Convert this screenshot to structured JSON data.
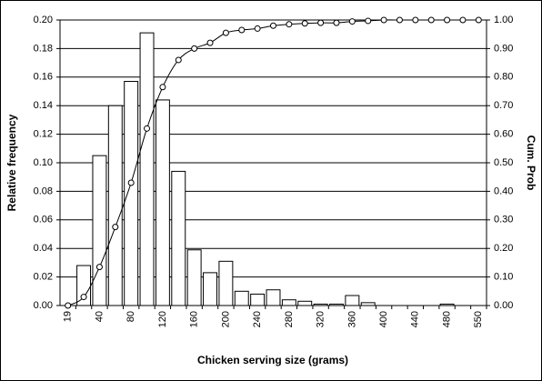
{
  "chart_data": {
    "type": "bar",
    "x_label": "Chicken serving size (grams)",
    "y_label": "Relative frequency",
    "y2_label": "Cum. Prob",
    "categories": [
      "19",
      null,
      "40",
      null,
      "80",
      null,
      "120",
      null,
      "160",
      null,
      "200",
      null,
      "240",
      null,
      "280",
      null,
      "320",
      null,
      "360",
      null,
      "400",
      null,
      "440",
      null,
      "480",
      null,
      "550"
    ],
    "series": [
      {
        "color": "#ffffff",
        "values": [
          0,
          0.028,
          0.105,
          0.14,
          0.157,
          0.191,
          0.144,
          0.094,
          0.039,
          0.023,
          0.031,
          0.01,
          0.008,
          0.011,
          0.004,
          0.003,
          0.001,
          0.001,
          0.007,
          0.002,
          0,
          0,
          0,
          0,
          0.001,
          0,
          0
        ]
      },
      {
        "type": "line",
        "axis": "y2",
        "color": "#000000",
        "values": [
          0,
          0.03,
          0.135,
          0.275,
          0.43,
          0.62,
          0.765,
          0.86,
          0.9,
          0.92,
          0.955,
          0.965,
          0.97,
          0.98,
          0.985,
          0.988,
          0.99,
          0.99,
          0.995,
          0.997,
          1,
          1,
          1,
          1,
          1,
          1,
          1
        ]
      }
    ],
    "ylim": [
      0,
      0.2
    ],
    "yticks": [
      {
        "value": 0,
        "label": "0.00"
      },
      {
        "value": 0.02,
        "label": "0.02"
      },
      {
        "value": 0.04,
        "label": "0.04"
      },
      {
        "value": 0.06,
        "label": "0.06"
      },
      {
        "value": 0.08,
        "label": "0.08"
      },
      {
        "value": 0.1,
        "label": "0.10"
      },
      {
        "value": 0.12,
        "label": "0.12"
      },
      {
        "value": 0.14,
        "label": "0.14"
      },
      {
        "value": 0.16,
        "label": "0.16"
      },
      {
        "value": 0.18,
        "label": "0.18"
      },
      {
        "value": 0.2,
        "label": "0.20"
      }
    ],
    "y2lim": [
      0,
      1
    ],
    "y2ticks": [
      {
        "value": 0,
        "label": "0.00"
      },
      {
        "value": 0.1,
        "label": "0.10"
      },
      {
        "value": 0.2,
        "label": "0.20"
      },
      {
        "value": 0.3,
        "label": "0.30"
      },
      {
        "value": 0.4,
        "label": "0.40"
      },
      {
        "value": 0.5,
        "label": "0.50"
      },
      {
        "value": 0.6,
        "label": "0.60"
      },
      {
        "value": 0.7,
        "label": "0.70"
      },
      {
        "value": 0.8,
        "label": "0.80"
      },
      {
        "value": 0.9,
        "label": "0.90"
      },
      {
        "value": 1,
        "label": "1.00"
      }
    ],
    "grid": true
  }
}
